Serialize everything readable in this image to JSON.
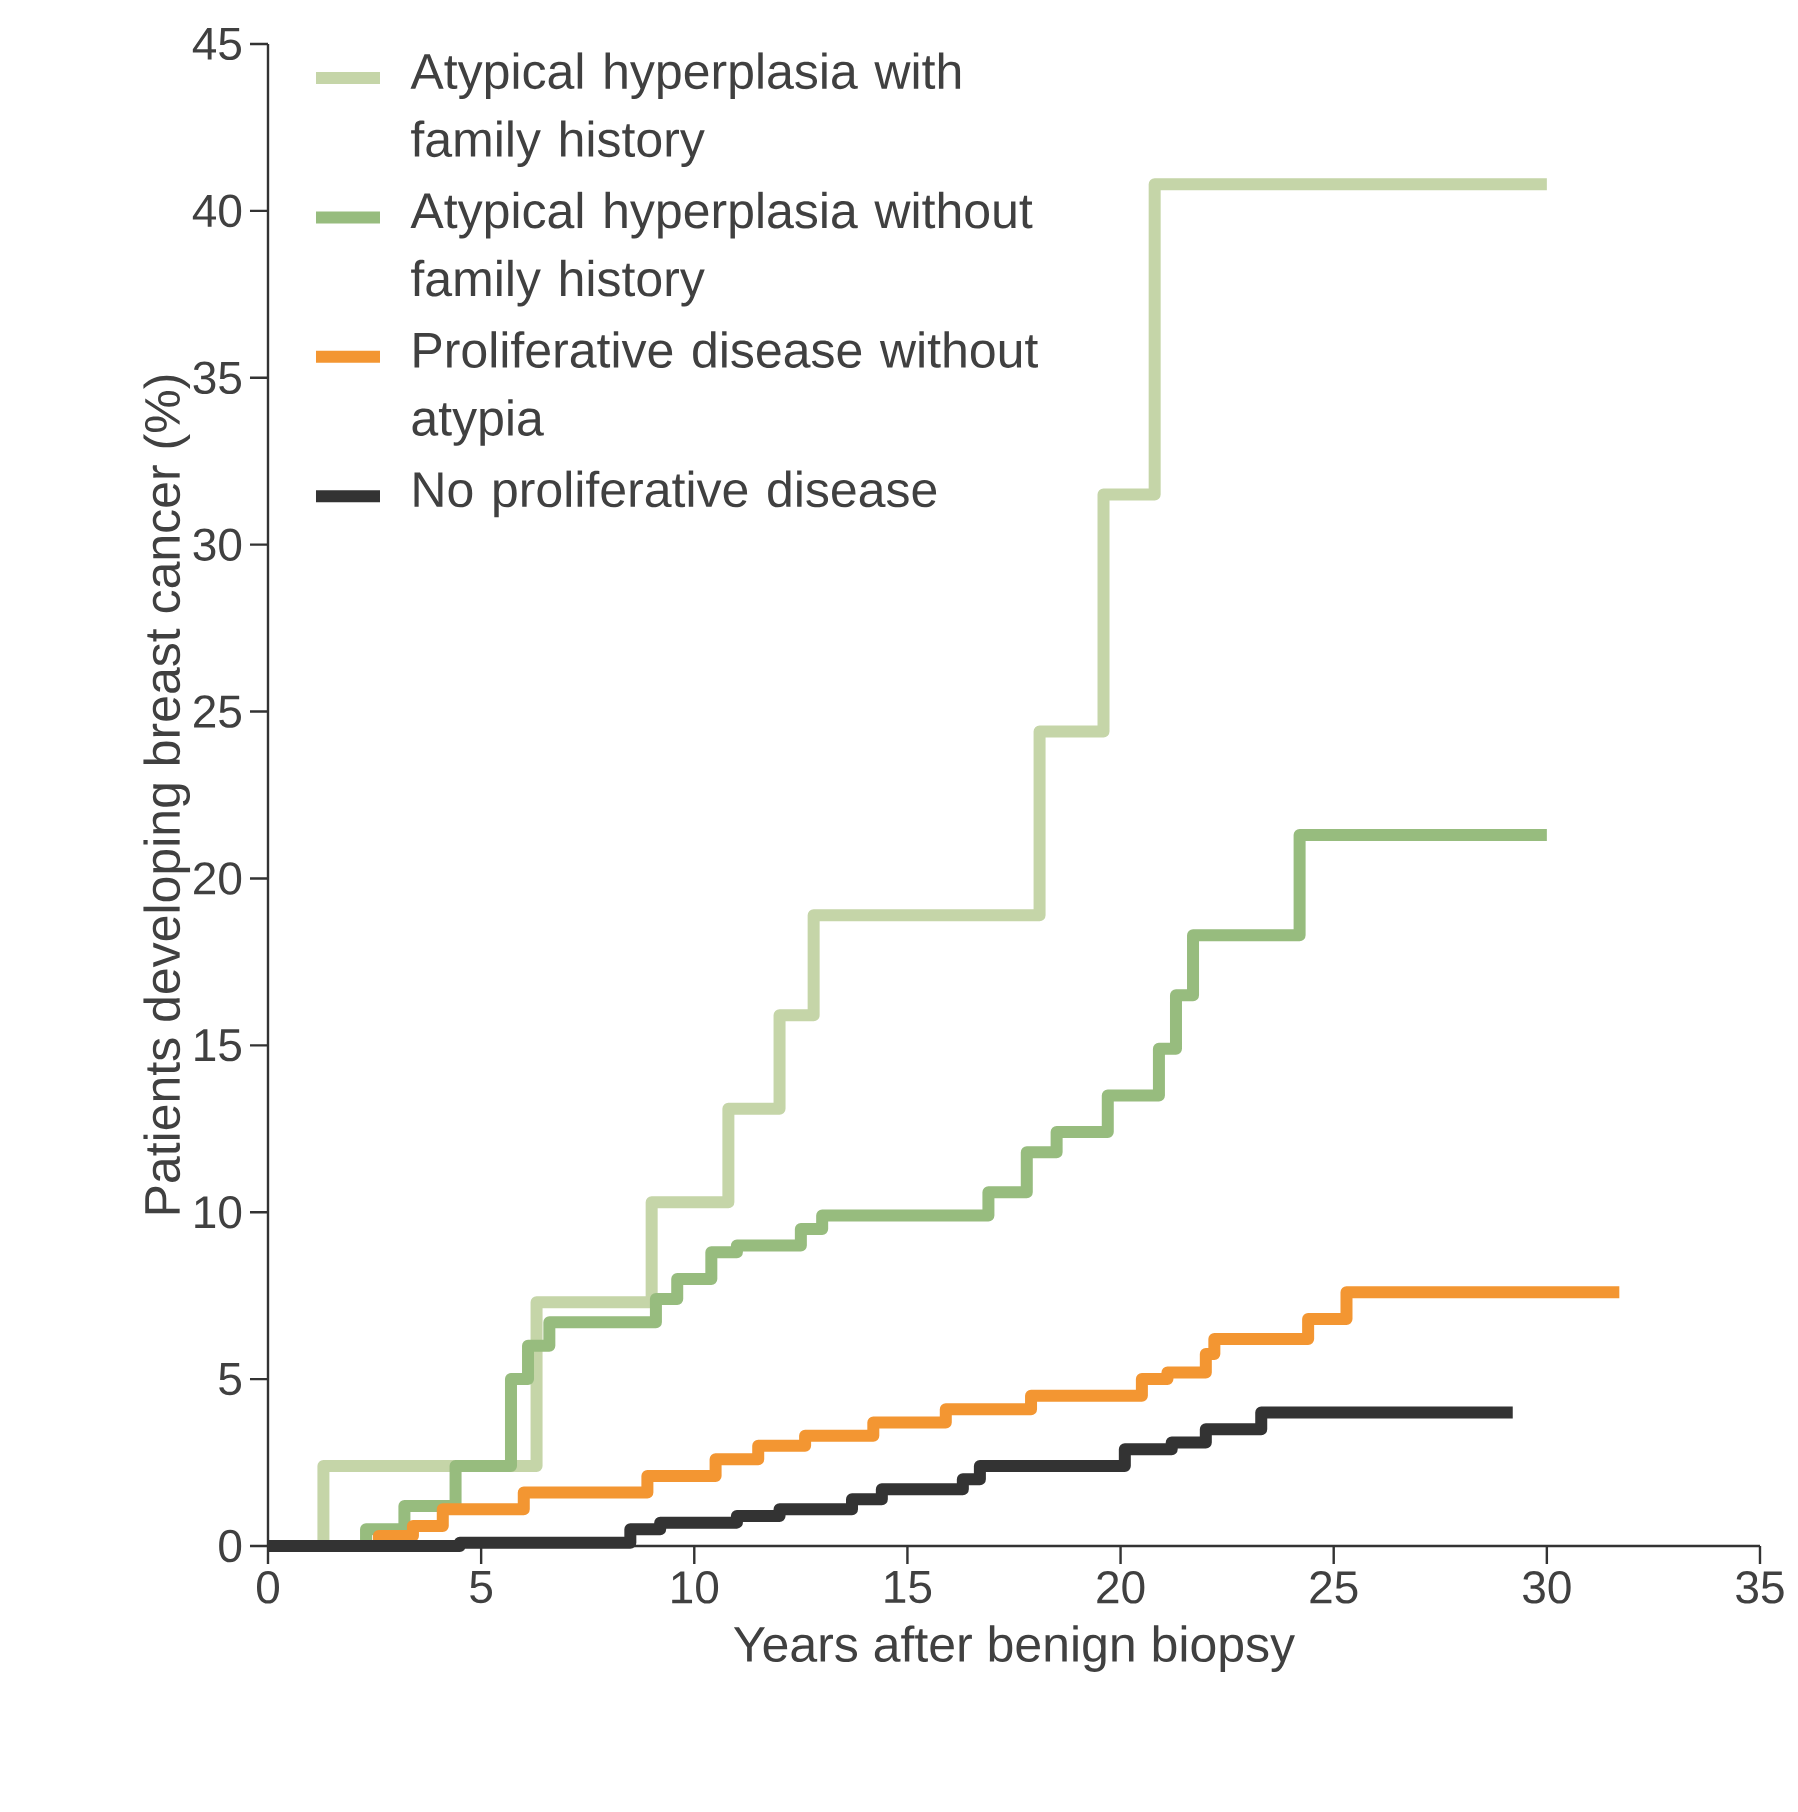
{
  "chart_data": {
    "type": "step",
    "xlabel": "Years after benign biopsy",
    "ylabel": "Patients developing breast cancer (%)",
    "xlim": [
      0,
      35
    ],
    "xticks": [
      0,
      5,
      10,
      15,
      20,
      25,
      30,
      35
    ],
    "ylim": [
      0,
      45
    ],
    "yticks": [
      0,
      5,
      10,
      15,
      20,
      25,
      30,
      35,
      40,
      45
    ],
    "legend": "top left",
    "grid": false,
    "marker": "none",
    "line_style": "solid",
    "series": [
      {
        "name": "Atypical hyperplasia with family history",
        "color": "#c5d5a8",
        "x": [
          0,
          1.3,
          6.3,
          9.0,
          10.8,
          12.0,
          12.8,
          18.1,
          19.6,
          20.8,
          30.0
        ],
        "values": [
          0,
          2.4,
          7.3,
          10.3,
          13.1,
          15.9,
          18.9,
          24.4,
          31.5,
          40.8,
          40.8
        ]
      },
      {
        "name": "Atypical hyperplasia without family history",
        "color": "#97bc7e",
        "x": [
          0,
          2.3,
          3.2,
          4.4,
          5.7,
          6.1,
          6.6,
          9.1,
          9.6,
          10.4,
          11.0,
          12.5,
          13.0,
          16.9,
          17.8,
          18.5,
          19.7,
          20.9,
          21.3,
          21.7,
          24.2,
          30.0
        ],
        "values": [
          0,
          0.5,
          1.2,
          2.4,
          5.0,
          6.0,
          6.7,
          7.4,
          8.0,
          8.8,
          9.0,
          9.5,
          9.9,
          10.6,
          11.8,
          12.4,
          13.5,
          14.9,
          16.5,
          18.3,
          21.3,
          21.3
        ]
      },
      {
        "name": "Proliferative disease without atypia",
        "color": "#f39632",
        "x": [
          0,
          2.6,
          3.4,
          4.1,
          6.0,
          8.9,
          10.5,
          11.5,
          12.6,
          14.2,
          15.9,
          17.9,
          20.5,
          21.1,
          22.0,
          22.2,
          24.4,
          25.3,
          31.7
        ],
        "values": [
          0,
          0.3,
          0.6,
          1.1,
          1.6,
          2.1,
          2.6,
          3.0,
          3.3,
          3.7,
          4.1,
          4.5,
          5.0,
          5.2,
          5.75,
          6.2,
          6.8,
          7.6,
          7.6
        ]
      },
      {
        "name": "No proliferative disease",
        "color": "#333333",
        "x": [
          0,
          4.5,
          8.5,
          9.2,
          11.0,
          12.0,
          13.7,
          14.4,
          16.3,
          16.7,
          20.1,
          21.2,
          22.0,
          23.3,
          29.2
        ],
        "values": [
          0,
          0.1,
          0.5,
          0.7,
          0.9,
          1.1,
          1.4,
          1.7,
          2.0,
          2.4,
          2.9,
          3.1,
          3.5,
          4.0,
          4.0
        ]
      }
    ]
  }
}
